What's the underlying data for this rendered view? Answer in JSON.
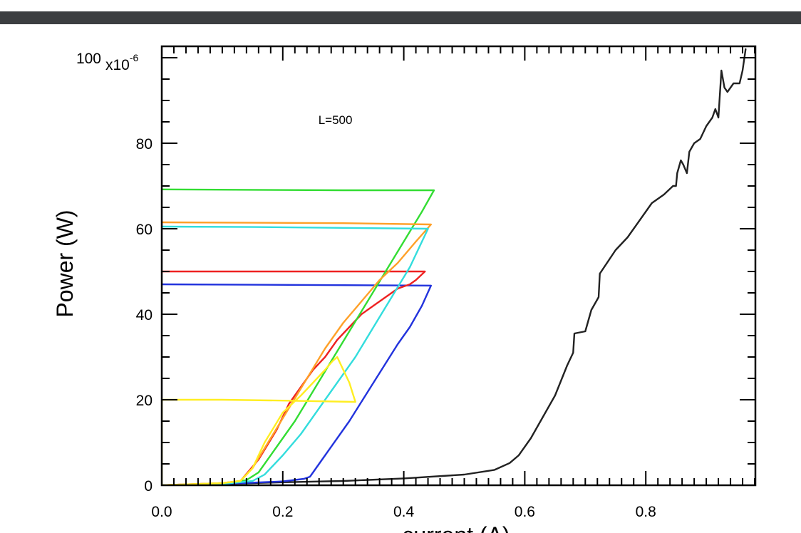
{
  "chart_data": {
    "type": "line",
    "xlabel": "current (A)",
    "ylabel": "Power (W)",
    "xlim": [
      0.0,
      0.98
    ],
    "ylim": [
      0,
      100
    ],
    "y_multiplier_label": "x10",
    "y_multiplier_exponent": "-6",
    "x_ticks": [
      {
        "value": 0.0,
        "label": "0.0"
      },
      {
        "value": 0.2,
        "label": "0.2"
      },
      {
        "value": 0.4,
        "label": "0.4"
      },
      {
        "value": 0.6,
        "label": "0.6"
      },
      {
        "value": 0.8,
        "label": "0.8"
      }
    ],
    "y_ticks": [
      {
        "value": 0,
        "label": "0"
      },
      {
        "value": 20,
        "label": "20"
      },
      {
        "value": 40,
        "label": "40"
      },
      {
        "value": 60,
        "label": "60"
      },
      {
        "value": 80,
        "label": "80"
      },
      {
        "value": 100,
        "label": "100"
      }
    ],
    "annotations": [
      {
        "text": "L=500",
        "x": 0.28,
        "y": 84
      }
    ],
    "grid": false,
    "series": [
      {
        "color": "#222222",
        "points": [
          [
            0.0,
            0
          ],
          [
            0.1,
            0.3
          ],
          [
            0.2,
            0.7
          ],
          [
            0.3,
            1.0
          ],
          [
            0.4,
            1.6
          ],
          [
            0.5,
            2.5
          ],
          [
            0.55,
            3.6
          ],
          [
            0.575,
            5.2
          ],
          [
            0.59,
            7
          ],
          [
            0.61,
            11
          ],
          [
            0.63,
            16
          ],
          [
            0.65,
            21
          ],
          [
            0.67,
            28
          ],
          [
            0.68,
            31
          ],
          [
            0.682,
            35.5
          ],
          [
            0.7,
            36
          ],
          [
            0.71,
            41
          ],
          [
            0.722,
            44
          ],
          [
            0.724,
            49.5
          ],
          [
            0.75,
            55
          ],
          [
            0.77,
            58
          ],
          [
            0.78,
            60
          ],
          [
            0.8,
            64
          ],
          [
            0.81,
            66
          ],
          [
            0.83,
            68
          ],
          [
            0.845,
            70
          ],
          [
            0.85,
            70
          ],
          [
            0.852,
            73
          ],
          [
            0.858,
            76
          ],
          [
            0.862,
            75
          ],
          [
            0.868,
            73
          ],
          [
            0.872,
            78
          ],
          [
            0.88,
            80
          ],
          [
            0.89,
            81
          ],
          [
            0.9,
            84
          ],
          [
            0.91,
            86
          ],
          [
            0.915,
            88
          ],
          [
            0.92,
            86
          ],
          [
            0.925,
            97
          ],
          [
            0.93,
            93
          ],
          [
            0.935,
            92
          ],
          [
            0.945,
            94
          ],
          [
            0.955,
            94
          ],
          [
            0.96,
            97
          ],
          [
            0.965,
            102
          ]
        ]
      },
      {
        "color": "#2233dd",
        "points": [
          [
            0.0,
            0
          ],
          [
            0.1,
            0.3
          ],
          [
            0.2,
            0.9
          ],
          [
            0.235,
            1.5
          ],
          [
            0.245,
            2
          ],
          [
            0.27,
            7
          ],
          [
            0.31,
            15
          ],
          [
            0.35,
            24
          ],
          [
            0.39,
            33
          ],
          [
            0.41,
            37
          ],
          [
            0.43,
            42
          ],
          [
            0.445,
            46.7
          ],
          [
            0.3,
            46.8
          ],
          [
            0.15,
            46.9
          ],
          [
            0.0,
            47
          ]
        ]
      },
      {
        "color": "#ee2222",
        "points": [
          [
            0.0,
            0
          ],
          [
            0.1,
            0.5
          ],
          [
            0.13,
            1
          ],
          [
            0.16,
            6
          ],
          [
            0.19,
            13
          ],
          [
            0.21,
            19
          ],
          [
            0.23,
            23
          ],
          [
            0.25,
            27
          ],
          [
            0.27,
            30
          ],
          [
            0.29,
            34
          ],
          [
            0.31,
            37
          ],
          [
            0.33,
            40
          ],
          [
            0.35,
            42
          ],
          [
            0.37,
            44
          ],
          [
            0.39,
            46
          ],
          [
            0.41,
            47
          ],
          [
            0.42,
            48
          ],
          [
            0.435,
            50
          ],
          [
            0.3,
            50
          ],
          [
            0.15,
            50
          ],
          [
            0.0,
            50
          ]
        ]
      },
      {
        "color": "#33dd33",
        "points": [
          [
            0.0,
            0
          ],
          [
            0.1,
            0.4
          ],
          [
            0.14,
            1.2
          ],
          [
            0.16,
            3
          ],
          [
            0.19,
            9
          ],
          [
            0.22,
            15
          ],
          [
            0.25,
            22
          ],
          [
            0.28,
            29
          ],
          [
            0.31,
            36
          ],
          [
            0.34,
            43
          ],
          [
            0.37,
            50
          ],
          [
            0.4,
            57
          ],
          [
            0.43,
            64
          ],
          [
            0.45,
            69
          ],
          [
            0.3,
            69
          ],
          [
            0.15,
            69.1
          ],
          [
            0.0,
            69.2
          ]
        ]
      },
      {
        "color": "#ffa028",
        "points": [
          [
            0.0,
            0
          ],
          [
            0.1,
            0.5
          ],
          [
            0.13,
            1
          ],
          [
            0.15,
            4
          ],
          [
            0.18,
            11
          ],
          [
            0.21,
            18
          ],
          [
            0.24,
            25
          ],
          [
            0.27,
            32
          ],
          [
            0.3,
            38
          ],
          [
            0.33,
            43
          ],
          [
            0.36,
            48
          ],
          [
            0.39,
            52
          ],
          [
            0.42,
            57
          ],
          [
            0.445,
            61
          ],
          [
            0.3,
            61.3
          ],
          [
            0.15,
            61.4
          ],
          [
            0.0,
            61.5
          ]
        ]
      },
      {
        "color": "#33dddd",
        "points": [
          [
            0.0,
            0
          ],
          [
            0.1,
            0.3
          ],
          [
            0.15,
            1
          ],
          [
            0.17,
            2.5
          ],
          [
            0.2,
            7
          ],
          [
            0.23,
            12
          ],
          [
            0.26,
            18
          ],
          [
            0.29,
            24
          ],
          [
            0.32,
            30
          ],
          [
            0.35,
            37
          ],
          [
            0.38,
            44
          ],
          [
            0.41,
            51
          ],
          [
            0.44,
            60
          ],
          [
            0.3,
            60.2
          ],
          [
            0.15,
            60.4
          ],
          [
            0.0,
            60.5
          ]
        ]
      },
      {
        "color": "#ffee22",
        "points": [
          [
            0.0,
            0
          ],
          [
            0.0,
            20
          ],
          [
            0.1,
            20
          ],
          [
            0.2,
            19.8
          ],
          [
            0.32,
            19.5
          ],
          [
            0.31,
            24
          ],
          [
            0.3,
            27
          ],
          [
            0.29,
            30
          ],
          [
            0.282,
            29
          ],
          [
            0.27,
            27
          ],
          [
            0.25,
            24
          ],
          [
            0.23,
            21
          ],
          [
            0.2,
            17
          ],
          [
            0.17,
            10
          ],
          [
            0.15,
            4
          ],
          [
            0.13,
            1
          ],
          [
            0.1,
            0.5
          ],
          [
            0.0,
            0
          ]
        ]
      }
    ]
  }
}
